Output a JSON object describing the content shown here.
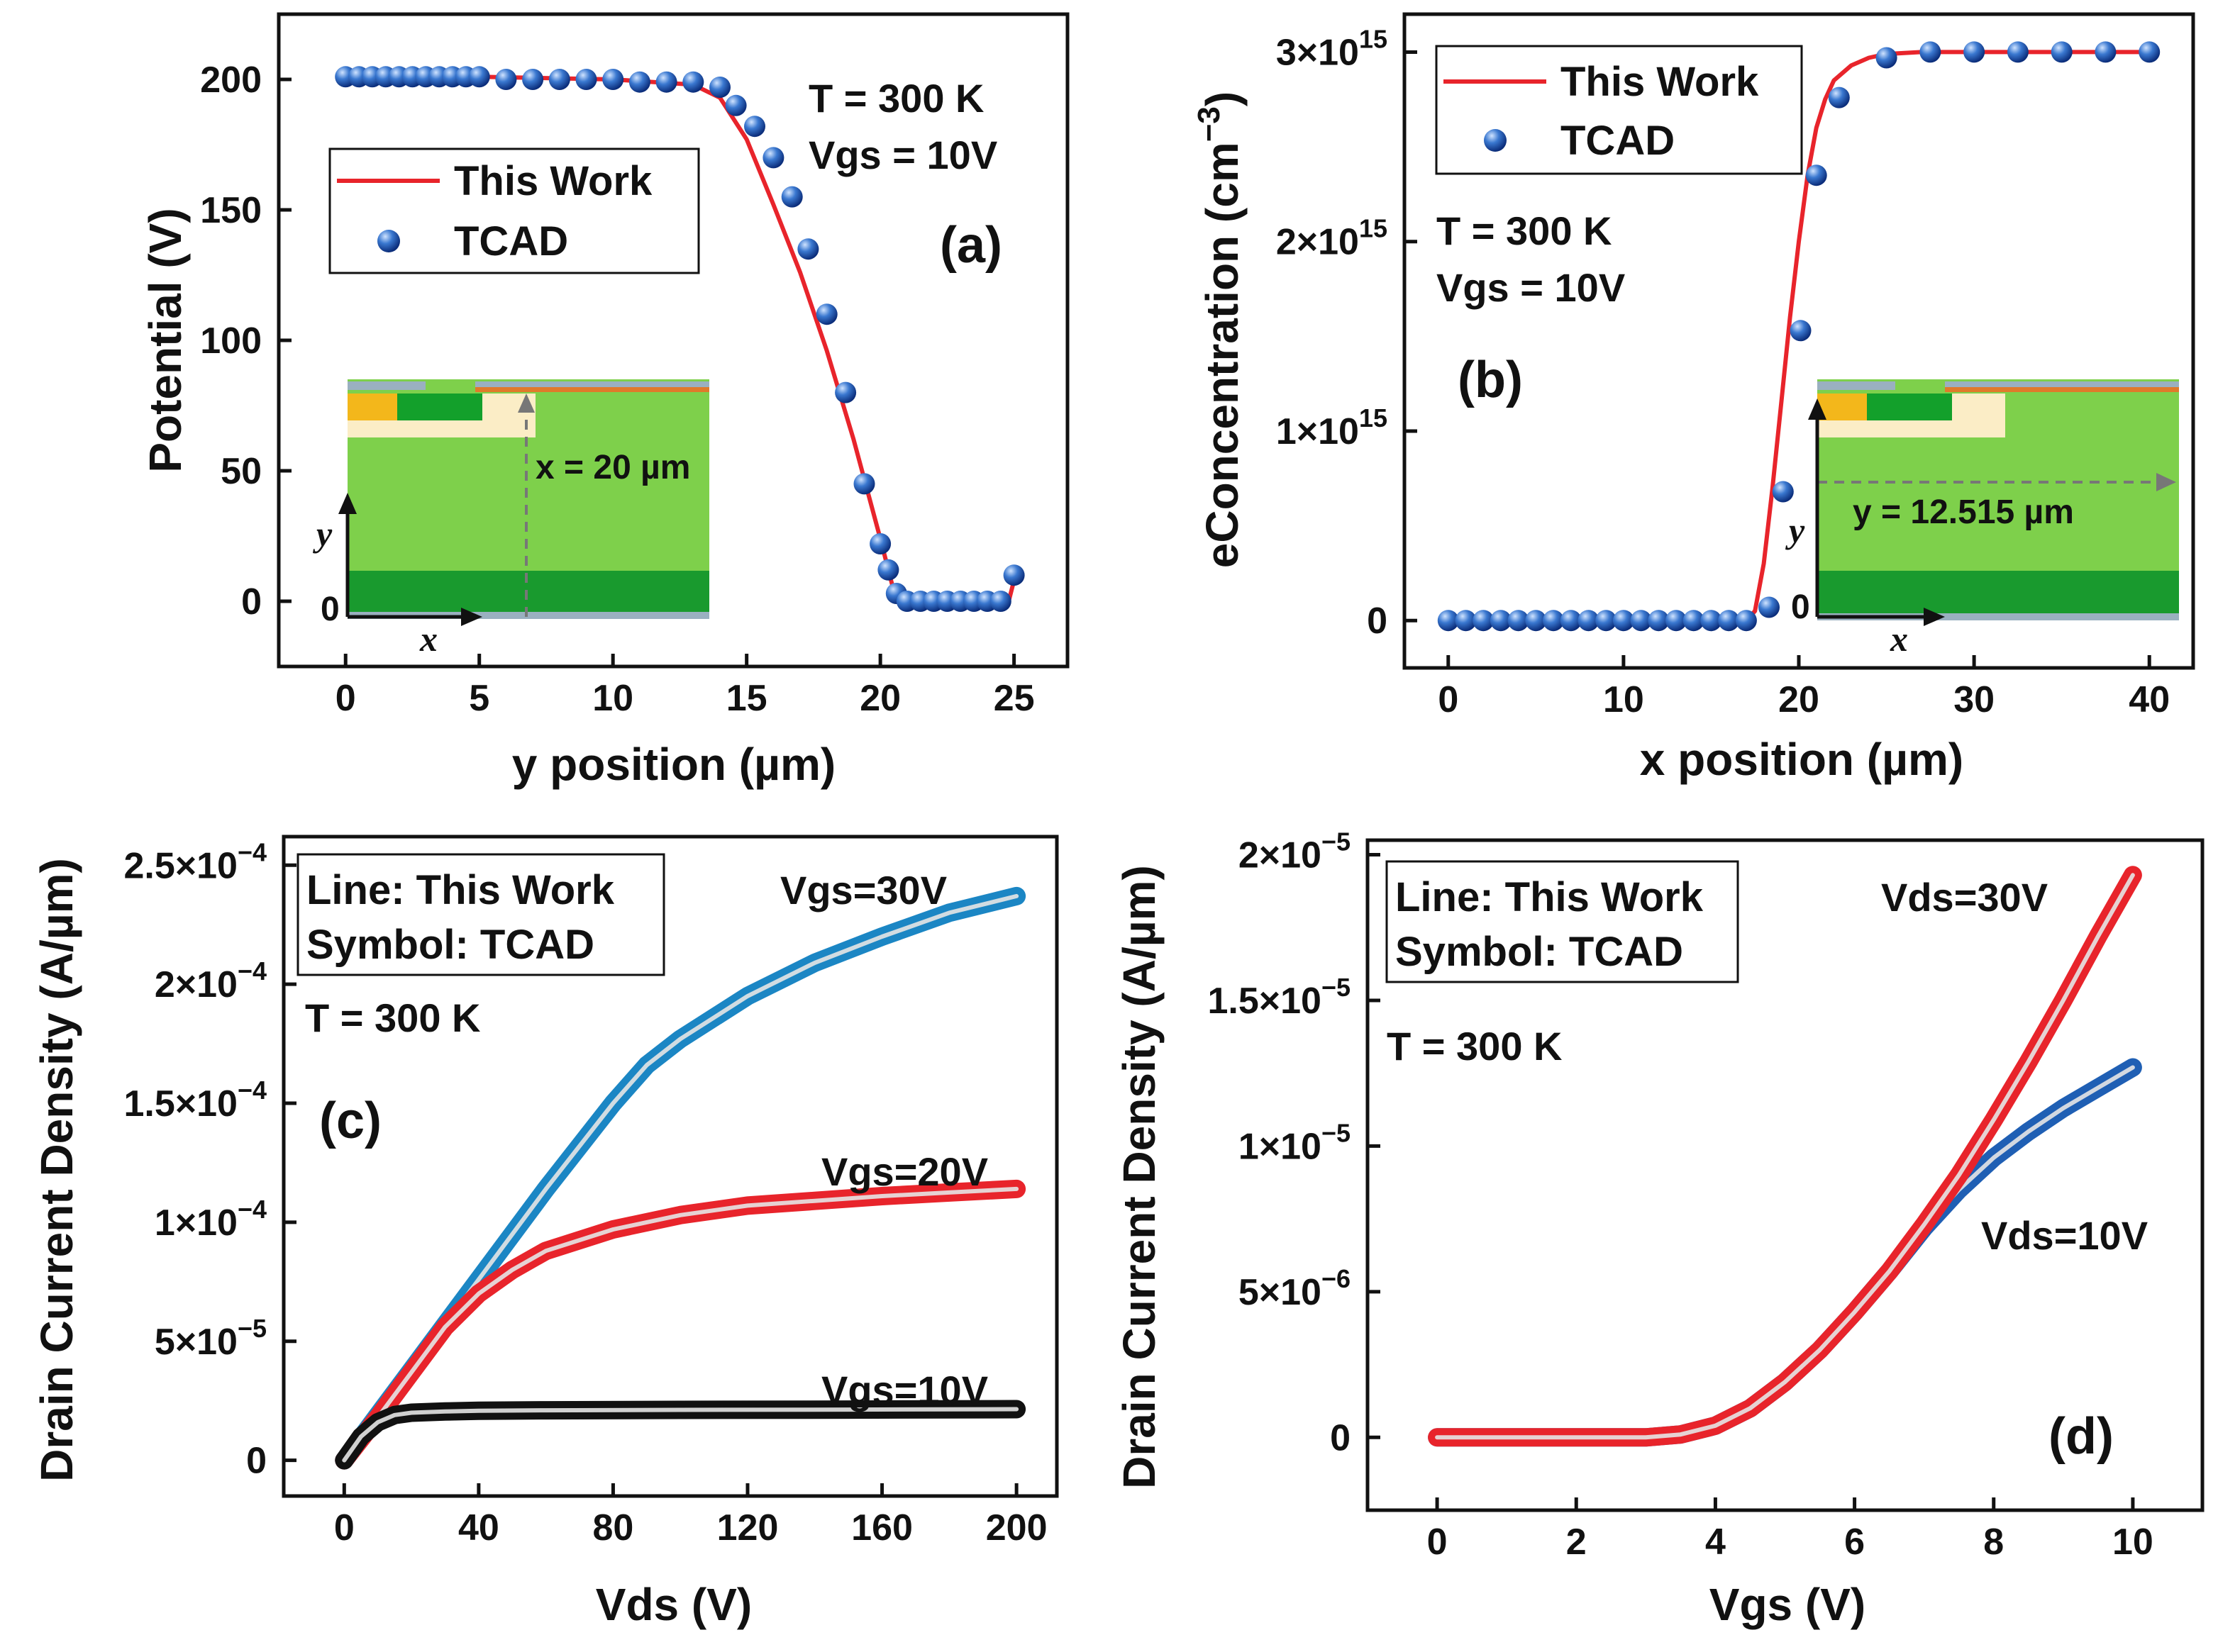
{
  "chart_data": [
    {
      "id": "a",
      "type": "line",
      "panel_label": "(a)",
      "xlabel": "y position (µm)",
      "ylabel": "Potential (V)",
      "xlim": [
        -2.5,
        27
      ],
      "ylim": [
        -25,
        225
      ],
      "xticks": [
        0,
        5,
        10,
        15,
        20,
        25
      ],
      "yticks": [
        0,
        50,
        100,
        150,
        200
      ],
      "xtick_labels": [
        "0",
        "5",
        "10",
        "15",
        "20",
        "25"
      ],
      "ytick_labels": [
        "0",
        "50",
        "100",
        "150",
        "200"
      ],
      "annotations": [
        "T = 300 K",
        "Vgs = 10V"
      ],
      "legend": {
        "line": "This Work",
        "symbol": "TCAD"
      },
      "series": [
        {
          "name": "This Work",
          "kind": "line",
          "color": "#e8242b",
          "x": [
            0,
            5,
            10,
            13,
            14,
            15,
            16,
            17,
            18,
            19,
            20,
            20.5,
            21,
            24.8,
            25
          ],
          "y": [
            201,
            201,
            200,
            198,
            193,
            177,
            152,
            126,
            96,
            62,
            24,
            4,
            0,
            0,
            8
          ]
        },
        {
          "name": "TCAD",
          "kind": "scatter",
          "color": "#1f5fb4",
          "x": [
            0,
            0.5,
            1,
            1.5,
            2,
            2.5,
            3,
            3.5,
            4,
            4.5,
            5,
            6,
            7,
            8,
            9,
            10,
            11,
            12,
            13,
            14,
            14.6,
            15.3,
            16,
            16.7,
            17.3,
            18,
            18.7,
            19.4,
            20,
            20.3,
            20.6,
            21,
            21.5,
            22,
            22.5,
            23,
            23.5,
            24,
            24.5,
            25
          ],
          "y": [
            201,
            201,
            201,
            201,
            201,
            201,
            201,
            201,
            201,
            201,
            201,
            200,
            200,
            200,
            200,
            200,
            199,
            199,
            199,
            197,
            190,
            182,
            170,
            155,
            135,
            110,
            80,
            45,
            22,
            12,
            3,
            0,
            0,
            0,
            0,
            0,
            0,
            0,
            0,
            10
          ]
        }
      ],
      "inset": {
        "x_label": "x = 20 µm",
        "axis_y": "y",
        "axis_x": "x",
        "origin": "0"
      }
    },
    {
      "id": "b",
      "type": "line",
      "panel_label": "(b)",
      "xlabel": "x position (µm)",
      "ylabel_main": "eConcentration (cm",
      "ylabel_sup": "−3",
      "ylabel_end": ")",
      "xlim": [
        -2.5,
        42.5
      ],
      "ylim": [
        -250000000000000.0,
        3200000000000000.0
      ],
      "xticks": [
        0,
        10,
        20,
        30,
        40
      ],
      "yticks": [
        0,
        1000000000000000.0,
        2000000000000000.0,
        3000000000000000.0
      ],
      "xtick_labels": [
        "0",
        "10",
        "20",
        "30",
        "40"
      ],
      "ytick_labels": [
        "0",
        "1×10",
        "2×10",
        "3×10"
      ],
      "ytick_exp": "15",
      "annotations": [
        "T = 300 K",
        "Vgs = 10V"
      ],
      "legend": {
        "line": "This Work",
        "symbol": "TCAD"
      },
      "series": [
        {
          "name": "This Work",
          "kind": "line",
          "color": "#e8242b",
          "x": [
            0,
            17,
            17.5,
            18,
            18.5,
            19,
            19.5,
            20,
            20.5,
            21,
            21.5,
            22,
            23,
            24,
            25,
            27,
            40
          ],
          "y": [
            0,
            0,
            50000000000000.0,
            300000000000000.0,
            700000000000000.0,
            1150000000000000.0,
            1600000000000000.0,
            2000000000000000.0,
            2350000000000000.0,
            2600000000000000.0,
            2750000000000000.0,
            2850000000000000.0,
            2930000000000000.0,
            2970000000000000.0,
            2990000000000000.0,
            3000000000000000.0,
            3000000000000000.0
          ]
        },
        {
          "name": "TCAD",
          "kind": "scatter",
          "color": "#1f5fb4",
          "x": [
            0,
            1,
            2,
            3,
            4,
            5,
            6,
            7,
            8,
            9,
            10,
            11,
            12,
            13,
            14,
            15,
            16,
            17,
            18.3,
            19.1,
            20.1,
            21,
            22.3,
            25,
            27.5,
            30,
            32.5,
            35,
            37.5,
            40
          ],
          "y": [
            0,
            0,
            0,
            0,
            0,
            0,
            0,
            0,
            0,
            0,
            0,
            0,
            0,
            0,
            0,
            0,
            0,
            0,
            70000000000000.0,
            680000000000000.0,
            1530000000000000.0,
            2350000000000000.0,
            2760000000000000.0,
            2970000000000000.0,
            3000000000000000.0,
            3000000000000000.0,
            3000000000000000.0,
            3000000000000000.0,
            3000000000000000.0,
            3000000000000000.0
          ]
        }
      ],
      "inset": {
        "y_label": "y = 12.515 µm",
        "axis_y": "y",
        "axis_x": "x",
        "origin": "0"
      }
    },
    {
      "id": "c",
      "type": "line",
      "panel_label": "(c)",
      "xlabel": "Vds (V)",
      "ylabel": "Drain Current Density (A/µm)",
      "xlim": [
        -18,
        212
      ],
      "ylim": [
        -1.5e-05,
        0.000262
      ],
      "xticks": [
        0,
        40,
        80,
        120,
        160,
        200
      ],
      "yticks": [
        0,
        5e-05,
        0.0001,
        0.00015,
        0.0002,
        0.00025
      ],
      "xtick_labels": [
        "0",
        "40",
        "80",
        "120",
        "160",
        "200"
      ],
      "ytick_labels": [
        "0",
        "5×10",
        "1×10",
        "1.5×10",
        "2×10",
        "2.5×10"
      ],
      "ytick_exps": [
        "",
        "−5",
        "−4",
        "−4",
        "−4",
        "−4"
      ],
      "legend_text": [
        "Line: This Work",
        "Symbol: TCAD"
      ],
      "annotations": [
        "T = 300 K"
      ],
      "series": [
        {
          "name": "Vgs=30V",
          "color": "#1b86c4",
          "x": [
            0,
            10,
            20,
            30,
            40,
            50,
            60,
            70,
            80,
            90,
            100,
            120,
            140,
            160,
            180,
            200
          ],
          "y": [
            0,
            1.9e-05,
            3.8e-05,
            5.7e-05,
            7.6e-05,
            9.5e-05,
            0.000114,
            0.000132,
            0.00015,
            0.000166,
            0.000177,
            0.000195,
            0.000209,
            0.00022,
            0.00023,
            0.000237
          ]
        },
        {
          "name": "Vgs=20V",
          "color": "#e8242b",
          "x": [
            0,
            10,
            20,
            30,
            40,
            50,
            60,
            80,
            100,
            120,
            140,
            160,
            180,
            200
          ],
          "y": [
            0,
            1.8e-05,
            3.7e-05,
            5.6e-05,
            7e-05,
            8e-05,
            8.8e-05,
            9.7e-05,
            0.000103,
            0.000107,
            0.000109,
            0.000111,
            0.0001125,
            0.000114
          ]
        },
        {
          "name": "Vgs=10V",
          "color": "#111111",
          "x": [
            0,
            5,
            10,
            15,
            20,
            30,
            40,
            60,
            100,
            150,
            200
          ],
          "y": [
            0,
            1e-05,
            1.6e-05,
            1.9e-05,
            2e-05,
            2.05e-05,
            2.08e-05,
            2.1e-05,
            2.12e-05,
            2.13e-05,
            2.15e-05
          ]
        }
      ]
    },
    {
      "id": "d",
      "type": "line",
      "panel_label": "(d)",
      "xlabel": "Vgs (V)",
      "ylabel": "Drain Current Density (A/µm)",
      "xlim": [
        -1,
        11
      ],
      "ylim": [
        -2.5e-06,
        2.05e-05
      ],
      "xticks": [
        0,
        2,
        4,
        6,
        8,
        10
      ],
      "yticks": [
        0,
        5e-06,
        1e-05,
        1.5e-05,
        2e-05
      ],
      "xtick_labels": [
        "0",
        "2",
        "4",
        "6",
        "8",
        "10"
      ],
      "ytick_labels": [
        "0",
        "5×10",
        "1×10",
        "1.5×10",
        "2×10"
      ],
      "ytick_exps": [
        "",
        "−6",
        "−5",
        "−5",
        "−5"
      ],
      "legend_text": [
        "Line: This Work",
        "Symbol: TCAD"
      ],
      "annotations": [
        "T = 300 K"
      ],
      "series": [
        {
          "name": "Vds=10V",
          "color": "#1f5fb4",
          "x": [
            0,
            3,
            3.5,
            4,
            4.5,
            5,
            5.5,
            6,
            6.5,
            7,
            7.5,
            8,
            8.5,
            9,
            9.5,
            10
          ],
          "y": [
            0,
            0,
            1e-07,
            4e-07,
            1e-06,
            1.9e-06,
            3e-06,
            4.3e-06,
            5.7e-06,
            7.2e-06,
            8.5e-06,
            9.6e-06,
            1.05e-05,
            1.13e-05,
            1.2e-05,
            1.27e-05
          ]
        },
        {
          "name": "Vds=30V",
          "color": "#e8242b",
          "x": [
            0,
            3,
            3.5,
            4,
            4.5,
            5,
            5.5,
            6,
            6.5,
            7,
            7.5,
            8,
            8.5,
            9,
            9.5,
            10
          ],
          "y": [
            0,
            0,
            1e-07,
            4e-07,
            1e-06,
            1.9e-06,
            3e-06,
            4.3e-06,
            5.7e-06,
            7.3e-06,
            9e-06,
            1.09e-05,
            1.29e-05,
            1.5e-05,
            1.72e-05,
            1.93e-05
          ]
        }
      ]
    }
  ]
}
